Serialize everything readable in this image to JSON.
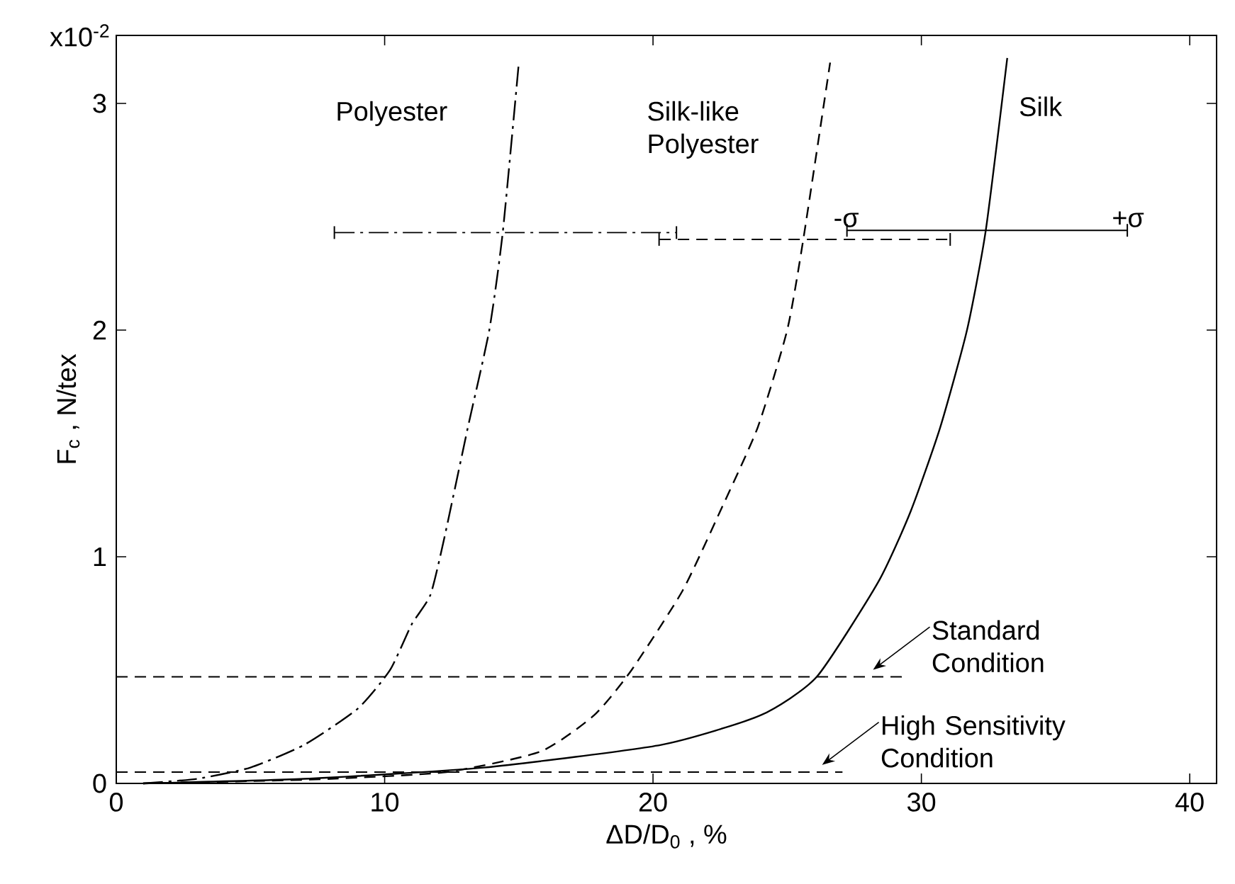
{
  "chart_data": {
    "type": "line",
    "xlabel": "ΔD/D$_{0}$ ,   %",
    "ylabel": "F$_{c}$  ,  N/tex",
    "xlim": [
      0,
      41
    ],
    "ylim": [
      0,
      3.3
    ],
    "xticks": [
      0,
      10,
      20,
      30,
      40
    ],
    "yticks": [
      0,
      1,
      2,
      3
    ],
    "series": [
      {
        "name": "Polyester",
        "color": "#000000",
        "line_style": "dashdot",
        "x": [
          1,
          3,
          5,
          7,
          9,
          10.2,
          11,
          11.7,
          12.2,
          13.1,
          13.9,
          14.4,
          15
        ],
        "values": [
          0,
          0.02,
          0.07,
          0.17,
          0.33,
          0.5,
          0.7,
          0.83,
          1.07,
          1.57,
          2.0,
          2.43,
          3.18
        ],
        "xerrors": [
          null,
          null,
          null,
          null,
          null,
          null,
          null,
          null,
          null,
          null,
          null,
          [
            8.1,
            20.9
          ],
          null
        ]
      },
      {
        "name": "Silk-like Polyester",
        "color": "#000000",
        "line_style": "dashed",
        "x": [
          1,
          5,
          8,
          12.3,
          15.8,
          17.8,
          19.2,
          21.1,
          22.5,
          23.9,
          25.0,
          25.6,
          26.6
        ],
        "values": [
          0,
          0.01,
          0.02,
          0.05,
          0.14,
          0.3,
          0.5,
          0.85,
          1.2,
          1.57,
          2.0,
          2.4,
          3.18
        ],
        "xerrors": [
          null,
          null,
          null,
          null,
          null,
          null,
          null,
          null,
          null,
          null,
          null,
          [
            20.2,
            31.1
          ],
          null
        ]
      },
      {
        "name": "Silk",
        "color": "#000000",
        "line_style": "solid",
        "x": [
          1,
          7,
          13.7,
          20.3,
          24,
          26.1,
          28.4,
          29.6,
          30.7,
          31.7,
          32.4,
          33.2
        ],
        "values": [
          0,
          0.02,
          0.07,
          0.17,
          0.3,
          0.47,
          0.89,
          1.2,
          1.57,
          2.0,
          2.44,
          3.2
        ],
        "xerrors": [
          null,
          null,
          null,
          null,
          null,
          null,
          null,
          null,
          null,
          null,
          [
            27.2,
            37.7
          ],
          null
        ]
      }
    ],
    "ref_lines": [
      {
        "axis": "y",
        "value": 0.47,
        "line_style": "dashed",
        "color": "#000000"
      },
      {
        "axis": "y",
        "value": 0.05,
        "line_style": "dashed",
        "color": "#000000"
      }
    ],
    "annotations": [
      "x10$^{-2}$",
      {
        "text": "-σ",
        "x": 27.2,
        "y": 2.44
      },
      {
        "text": "+σ",
        "x": 37.7,
        "y": 2.44
      },
      {
        "text": "Standard Condition",
        "x": 28.2,
        "y": 0.47
      },
      {
        "text": "High Sensitivity Condition",
        "x": 26.3,
        "y": 0.05
      }
    ]
  }
}
